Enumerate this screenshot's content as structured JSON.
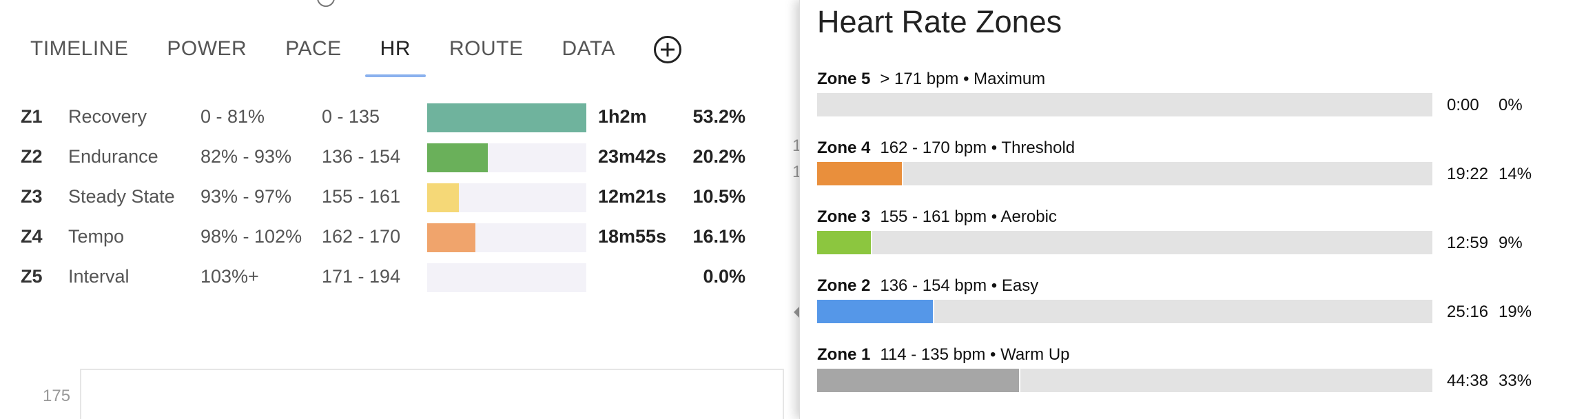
{
  "tabs": [
    {
      "label": "TIMELINE",
      "active": false
    },
    {
      "label": "POWER",
      "active": false
    },
    {
      "label": "PACE",
      "active": false
    },
    {
      "label": "HR",
      "active": true
    },
    {
      "label": "ROUTE",
      "active": false
    },
    {
      "label": "DATA",
      "active": false
    }
  ],
  "add_tab_icon": "plus-circle-icon",
  "zones_table": [
    {
      "id": "Z1",
      "name": "Recovery",
      "percent_range": "0 - 81%",
      "bpm_range": "0 - 135",
      "time": "1h2m",
      "share": "53.2%",
      "fill_fraction": 1.0,
      "color": "#6fb39d"
    },
    {
      "id": "Z2",
      "name": "Endurance",
      "percent_range": "82% - 93%",
      "bpm_range": "136 - 154",
      "time": "23m42s",
      "share": "20.2%",
      "fill_fraction": 0.38,
      "color": "#6ab05a"
    },
    {
      "id": "Z3",
      "name": "Steady State",
      "percent_range": "93% - 97%",
      "bpm_range": "155 - 161",
      "time": "12m21s",
      "share": "10.5%",
      "fill_fraction": 0.197,
      "color": "#f5d877"
    },
    {
      "id": "Z4",
      "name": "Tempo",
      "percent_range": "98% - 102%",
      "bpm_range": "162 - 170",
      "time": "18m55s",
      "share": "16.1%",
      "fill_fraction": 0.302,
      "color": "#f0a46c"
    },
    {
      "id": "Z5",
      "name": "Interval",
      "percent_range": "103%+",
      "bpm_range": "171 - 194",
      "time": "",
      "share": "0.0%",
      "fill_fraction": 0.0,
      "color": "#f3f2f8"
    }
  ],
  "chart": {
    "y_tick": "175"
  },
  "background_fragments": [
    "1",
    "1"
  ],
  "panel": {
    "title": "Heart Rate Zones",
    "zones": [
      {
        "name": "Zone 5",
        "desc": "> 171 bpm • Maximum",
        "time": "0:00",
        "percent": "0%",
        "fill_fraction": 0.0,
        "color": "#e3e3e3"
      },
      {
        "name": "Zone 4",
        "desc": "162 - 170 bpm • Threshold",
        "time": "19:22",
        "percent": "14%",
        "fill_fraction": 0.14,
        "color": "#e98f3c"
      },
      {
        "name": "Zone 3",
        "desc": "155 - 161 bpm • Aerobic",
        "time": "12:59",
        "percent": "9%",
        "fill_fraction": 0.09,
        "color": "#8cc63f"
      },
      {
        "name": "Zone 2",
        "desc": "136 - 154 bpm • Easy",
        "time": "25:16",
        "percent": "19%",
        "fill_fraction": 0.19,
        "color": "#5597e8"
      },
      {
        "name": "Zone 1",
        "desc": "114 - 135 bpm • Warm Up",
        "time": "44:38",
        "percent": "33%",
        "fill_fraction": 0.33,
        "color": "#a6a6a6"
      }
    ]
  }
}
